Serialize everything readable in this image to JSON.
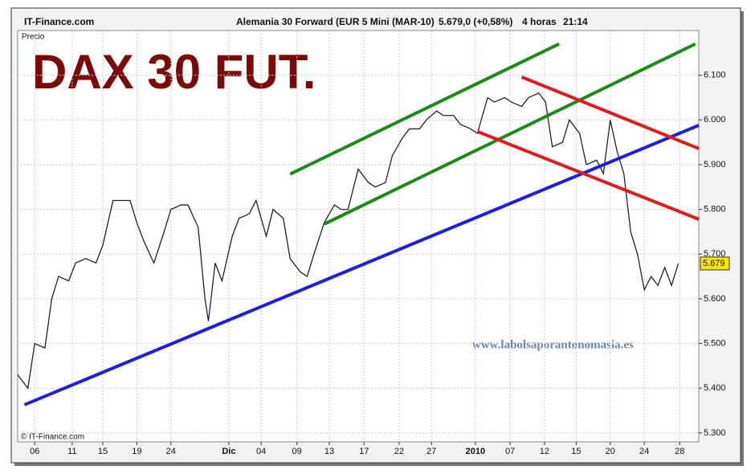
{
  "header": {
    "site": "IT-Finance.com",
    "instrument": "Alemania 30 Forward (EUR 5 Mini (MAR-10)",
    "quote": "5.679,0 (+0,58%)",
    "period": "4 horas",
    "time": "21:14"
  },
  "chart_data": {
    "type": "line",
    "title": "DAX 30 FUT.",
    "y_label": "Precio",
    "annotation": "www.labolsaporantonomasia.es",
    "copyright": "© IT-Finance.com",
    "x": [
      0,
      3,
      5,
      8,
      10,
      12,
      15,
      17,
      20,
      23,
      25,
      28,
      30,
      33,
      35,
      37,
      40,
      43,
      45,
      48,
      50,
      53,
      55,
      56,
      58,
      60,
      63,
      65,
      68,
      70,
      73,
      75,
      78,
      80,
      83,
      85,
      87,
      90,
      93,
      95,
      97,
      100,
      103,
      105,
      108,
      110,
      113,
      115,
      118,
      120,
      123,
      125,
      128,
      130,
      133,
      135,
      138,
      140,
      143,
      145,
      148,
      150,
      153,
      155,
      157,
      160,
      162,
      165,
      167,
      170,
      172,
      174,
      176,
      178,
      180,
      182,
      184,
      186,
      188,
      190,
      192,
      194
    ],
    "series": [
      {
        "color": "#222222",
        "values": [
          5.43,
          5.4,
          5.5,
          5.49,
          5.6,
          5.65,
          5.64,
          5.68,
          5.69,
          5.68,
          5.72,
          5.82,
          5.82,
          5.82,
          5.77,
          5.73,
          5.68,
          5.75,
          5.8,
          5.81,
          5.81,
          5.76,
          5.6,
          5.55,
          5.68,
          5.64,
          5.74,
          5.78,
          5.79,
          5.82,
          5.74,
          5.8,
          5.78,
          5.69,
          5.66,
          5.65,
          5.7,
          5.77,
          5.81,
          5.8,
          5.8,
          5.89,
          5.86,
          5.85,
          5.86,
          5.92,
          5.96,
          5.98,
          5.98,
          6.0,
          6.02,
          6.01,
          6.01,
          5.99,
          5.98,
          5.97,
          6.05,
          6.04,
          6.05,
          6.04,
          6.03,
          6.05,
          6.06,
          6.04,
          5.94,
          5.95,
          6.0,
          5.97,
          5.9,
          5.91,
          5.88,
          6.0,
          5.93,
          5.88,
          5.75,
          5.7,
          5.62,
          5.65,
          5.63,
          5.67,
          5.63,
          5.679
        ]
      }
    ],
    "last_price": {
      "value": 5.679,
      "label": "5.679"
    },
    "trendlines": [
      {
        "color": "#1f1fd6",
        "x": [
          2,
          200
        ],
        "values": [
          5.363,
          5.988
        ]
      },
      {
        "color": "#1a8a1a",
        "x": [
          80,
          159
        ],
        "values": [
          5.879,
          6.17
        ]
      },
      {
        "color": "#1a8a1a",
        "x": [
          90,
          199
        ],
        "values": [
          5.767,
          6.17
        ]
      },
      {
        "color": "#e01b1b",
        "x": [
          148,
          200
        ],
        "values": [
          6.096,
          5.936
        ]
      },
      {
        "color": "#e01b1b",
        "x": [
          135,
          200
        ],
        "values": [
          5.974,
          5.778
        ]
      }
    ],
    "xlim": [
      0,
      200
    ],
    "xticks": [
      {
        "value": 5,
        "label": "06"
      },
      {
        "value": 16,
        "label": "11"
      },
      {
        "value": 25,
        "label": "15"
      },
      {
        "value": 35,
        "label": "19"
      },
      {
        "value": 45,
        "label": "24"
      },
      {
        "value": 62,
        "label": "Dic"
      },
      {
        "value": 71.5,
        "label": "04"
      },
      {
        "value": 82,
        "label": "09"
      },
      {
        "value": 91.5,
        "label": "13"
      },
      {
        "value": 101.7,
        "label": "17"
      },
      {
        "value": 112,
        "label": "22"
      },
      {
        "value": 121.5,
        "label": "27"
      },
      {
        "value": 134.4,
        "label": "2010"
      },
      {
        "value": 144.6,
        "label": "07"
      },
      {
        "value": 154.7,
        "label": "12"
      },
      {
        "value": 164,
        "label": "15"
      },
      {
        "value": 174,
        "label": "20"
      },
      {
        "value": 184,
        "label": "24"
      },
      {
        "value": 194.4,
        "label": "28"
      }
    ],
    "ylim": [
      5.28,
      6.2
    ],
    "yticks": [
      {
        "value": 5.3,
        "label": "5.300"
      },
      {
        "value": 5.4,
        "label": "5.400"
      },
      {
        "value": 5.5,
        "label": "5.500"
      },
      {
        "value": 5.6,
        "label": "5.600"
      },
      {
        "value": 5.7,
        "label": "5.700"
      },
      {
        "value": 5.8,
        "label": "5.800"
      },
      {
        "value": 5.9,
        "label": "5.900"
      },
      {
        "value": 6.0,
        "label": "6.000"
      },
      {
        "value": 6.1,
        "label": "6.100"
      }
    ],
    "grid": true
  }
}
